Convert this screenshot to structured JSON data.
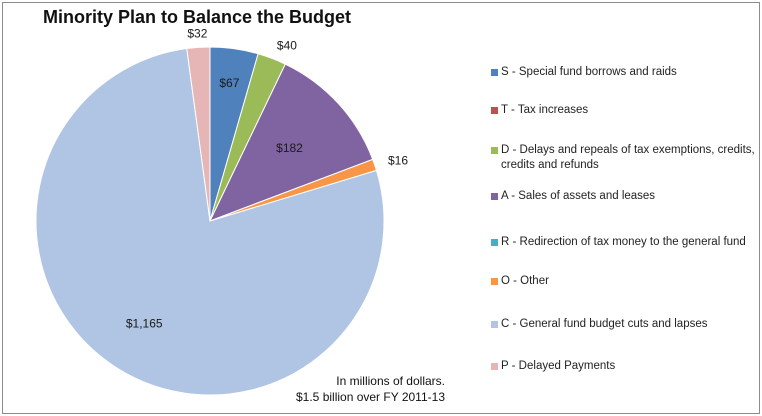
{
  "chart_data": {
    "type": "pie",
    "title": "Minority Plan to Balance the Budget",
    "note_line1": "In millions of dollars.",
    "note_line2": "$1.5 billion over FY 2011-13",
    "legend_placement": "right",
    "slices": [
      {
        "key": "S",
        "legend": "S - Special fund borrows and raids",
        "value": 67,
        "label": "$67",
        "color": "#4f81bd",
        "label_inside": true
      },
      {
        "key": "T",
        "legend": "T - Tax increases",
        "value": 0,
        "label": "",
        "color": "#c0504d",
        "label_inside": false
      },
      {
        "key": "D",
        "legend": "D - Delays and repeals of tax exemptions, credits, credits and refunds",
        "value": 40,
        "label": "$40",
        "color": "#9bbb59",
        "label_inside": false
      },
      {
        "key": "A",
        "legend": "A - Sales of assets and leases",
        "value": 182,
        "label": "$182",
        "color": "#8064a2",
        "label_inside": true
      },
      {
        "key": "R",
        "legend": "R - Redirection of tax money to the general fund",
        "value": 0,
        "label": "",
        "color": "#4bacc6",
        "label_inside": false
      },
      {
        "key": "O",
        "legend": "O - Other",
        "value": 16,
        "label": "$16",
        "color": "#f79646",
        "label_inside": false
      },
      {
        "key": "C",
        "legend": "C - General fund budget cuts and lapses",
        "value": 1165,
        "label": "$1,165",
        "color": "#b0c4e4",
        "label_inside": true
      },
      {
        "key": "P",
        "legend": "P - Delayed Payments",
        "value": 32,
        "label": "$32",
        "color": "#e6b5b5",
        "label_inside": false
      }
    ]
  }
}
